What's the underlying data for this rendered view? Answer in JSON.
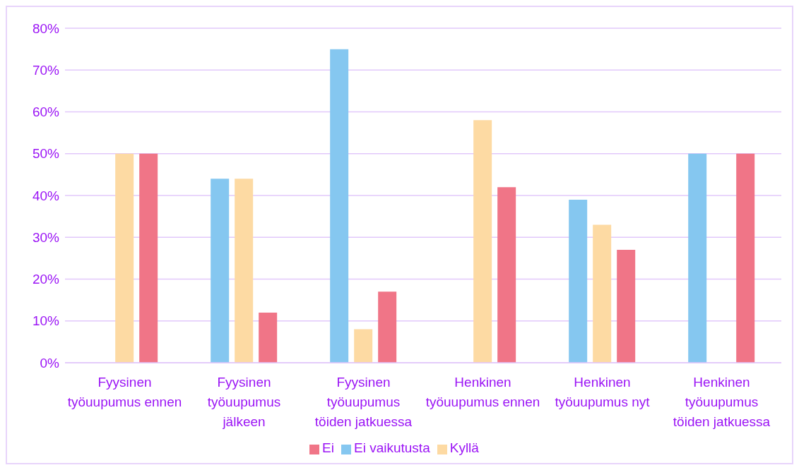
{
  "chart_data": {
    "type": "bar",
    "categories": [
      "Fyysinen työuupumus ennen",
      "Fyysinen työuupumus jälkeen",
      "Fyysinen työuupumus töiden jatkuessa",
      "Henkinen työuupumus ennen",
      "Henkinen työuupumus nyt",
      "Henkinen työuupumus töiden jatkuessa"
    ],
    "series": [
      {
        "name": "Ei vaikutusta",
        "color": "#85c7f0",
        "values": [
          0,
          44,
          75,
          0,
          39,
          50
        ]
      },
      {
        "name": "Kyllä",
        "color": "#fddaa3",
        "values": [
          50,
          44,
          8,
          58,
          33,
          0
        ]
      },
      {
        "name": "Ei",
        "color": "#f07587",
        "values": [
          50,
          12,
          17,
          42,
          27,
          50
        ]
      }
    ],
    "ylim": [
      0,
      80
    ],
    "yticks": [
      {
        "value": 0,
        "label": "0%"
      },
      {
        "value": 10,
        "label": "10%"
      },
      {
        "value": 20,
        "label": "20%"
      },
      {
        "value": 30,
        "label": "30%"
      },
      {
        "value": 40,
        "label": "40%"
      },
      {
        "value": 50,
        "label": "50%"
      },
      {
        "value": 60,
        "label": "60%"
      },
      {
        "value": 70,
        "label": "70%"
      },
      {
        "value": 80,
        "label": "80%"
      }
    ],
    "grid": "y",
    "legend": "bottom"
  }
}
